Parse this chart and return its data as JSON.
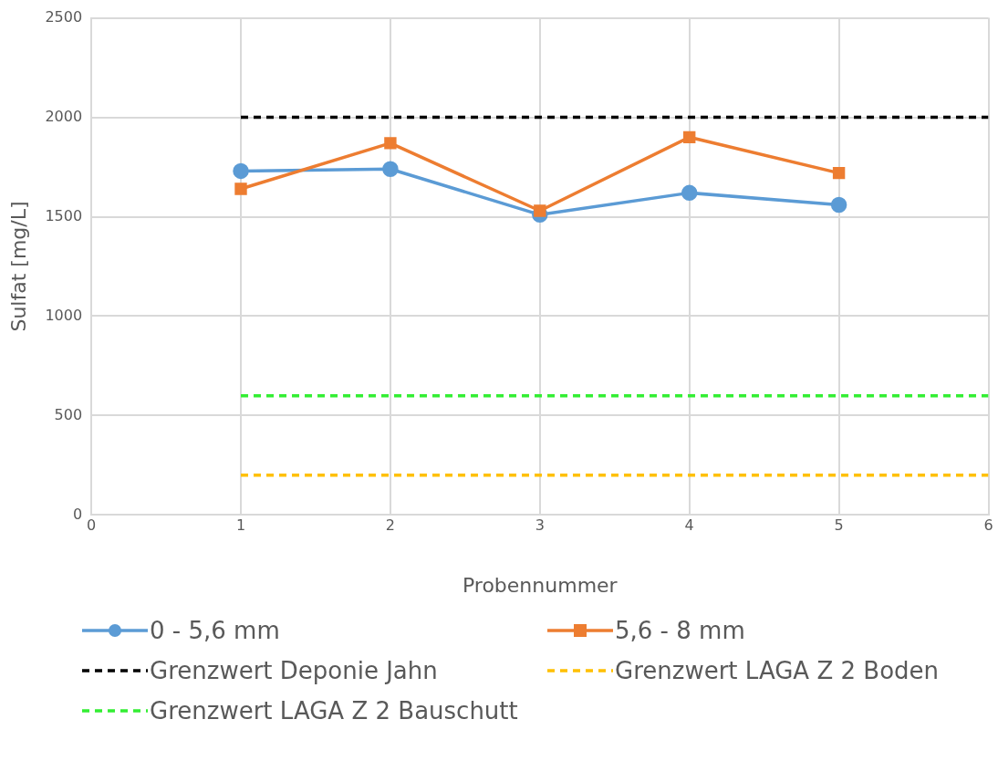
{
  "chart_data": {
    "type": "line",
    "xlabel": "Probennummer",
    "ylabel": "Sulfat [mg/L]",
    "xlim": [
      0,
      6
    ],
    "xticks": [
      0,
      1,
      2,
      3,
      4,
      5,
      6
    ],
    "ylim": [
      0,
      2500
    ],
    "yticks": [
      0,
      500,
      1000,
      1500,
      2000,
      2500
    ],
    "grid": true,
    "legend": "bottom",
    "series": [
      {
        "name": "0 - 5,6 mm",
        "color": "#5b9bd5",
        "x": [
          1,
          2,
          3,
          4,
          5
        ],
        "values": [
          1730,
          1740,
          1510,
          1620,
          1560
        ],
        "marker": "circle",
        "line_style": "solid"
      },
      {
        "name": "5,6 - 8 mm",
        "color": "#ed7d31",
        "x": [
          1,
          2,
          3,
          4,
          5
        ],
        "values": [
          1640,
          1870,
          1530,
          1900,
          1720
        ],
        "marker": "square",
        "line_style": "solid"
      },
      {
        "name": "Grenzwert Deponie Jahn",
        "color": "#000000",
        "x": [
          1,
          6
        ],
        "values": [
          2000,
          2000
        ],
        "marker": "none",
        "line_style": "dashed"
      },
      {
        "name": "Grenzwert LAGA Z 2 Boden",
        "color": "#ffc000",
        "x": [
          1,
          6
        ],
        "values": [
          200,
          200
        ],
        "marker": "none",
        "line_style": "dashed"
      },
      {
        "name": "Grenzwert LAGA Z 2 Bauschutt",
        "color": "#33ee33",
        "x": [
          1,
          6
        ],
        "values": [
          600,
          600
        ],
        "marker": "none",
        "line_style": "dashed"
      }
    ]
  }
}
